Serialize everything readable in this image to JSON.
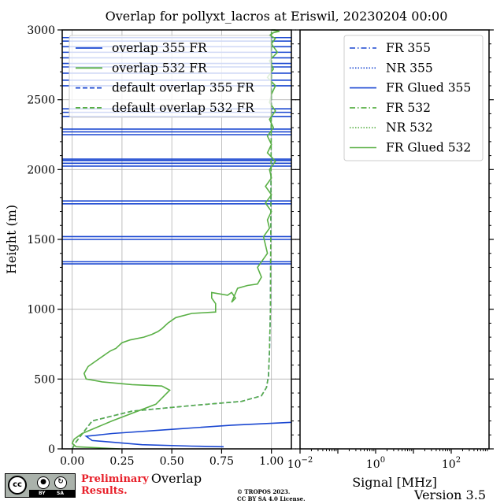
{
  "title": "Overlap for pollyxt_lacros at Eriswil, 20230204 00:00",
  "chart_data": [
    {
      "panel": "left",
      "type": "line",
      "xlabel": "Overlap",
      "ylabel": "Height (m)",
      "xlim": [
        -0.05,
        1.1
      ],
      "ylim": [
        0,
        3000
      ],
      "x_ticks": [
        0.0,
        0.25,
        0.5,
        0.75,
        1.0
      ],
      "x_tick_labels": [
        "0.00",
        "0.25",
        "0.50",
        "0.75",
        "1.00"
      ],
      "y_ticks": [
        0,
        500,
        1000,
        1500,
        2000,
        2500,
        3000
      ],
      "y_tick_labels": [
        "0",
        "500",
        "1000",
        "1500",
        "2000",
        "2500",
        "3000"
      ],
      "grid": true,
      "legend_position": "upper-left",
      "series": [
        {
          "name": "overlap 355 FR",
          "color": "#1a47d1",
          "style": "solid",
          "x": [
            0.76,
            0.6,
            0.35,
            0.1,
            0.07,
            0.2,
            0.5,
            0.8,
            1.1
          ],
          "y": [
            15,
            20,
            30,
            60,
            90,
            110,
            140,
            170,
            190
          ],
          "band_heights": [
            1325,
            1340,
            1500,
            1520,
            1755,
            1775,
            2025,
            2045,
            2065,
            2075,
            2250,
            2270,
            2290,
            2380,
            2410,
            2435,
            2600,
            2640,
            2690,
            2735,
            2760,
            2800,
            2840,
            2880,
            2920,
            2945
          ]
        },
        {
          "name": "overlap 532 FR",
          "color": "#5ab046",
          "style": "solid",
          "x": [
            0.24,
            0.02,
            0.0,
            0.01,
            0.05,
            0.2,
            0.42,
            0.49,
            0.45,
            0.3,
            0.15,
            0.07,
            0.06,
            0.08,
            0.13,
            0.19,
            0.22,
            0.25,
            0.29,
            0.36,
            0.4,
            0.43,
            0.45,
            0.48,
            0.52,
            0.6,
            0.72,
            0.72,
            0.7,
            0.7,
            0.78,
            0.8,
            0.82,
            0.8,
            0.83,
            0.88,
            0.93,
            0.95,
            0.93,
            0.95,
            0.98,
            0.97,
            0.96,
            0.99,
            0.98,
            1.0,
            0.97,
            1.0,
            0.97,
            1.0,
            0.99,
            1.02,
            0.98,
            1.0,
            0.98,
            1.01,
            0.99,
            1.02,
            0.99,
            1.0,
            1.02,
            0.98,
            1.01,
            0.99,
            1.03,
            1.0,
            1.02,
            0.99,
            1.01,
            1.04,
            1.0,
            1.02
          ],
          "y": [
            0,
            15,
            40,
            70,
            110,
            200,
            320,
            420,
            450,
            460,
            480,
            500,
            540,
            590,
            640,
            700,
            720,
            760,
            780,
            800,
            820,
            840,
            860,
            900,
            940,
            970,
            980,
            1040,
            1080,
            1120,
            1100,
            1120,
            1080,
            1050,
            1150,
            1170,
            1180,
            1230,
            1300,
            1340,
            1400,
            1460,
            1520,
            1580,
            1640,
            1700,
            1760,
            1820,
            1880,
            1940,
            2000,
            2060,
            2120,
            2180,
            2240,
            2300,
            2360,
            2420,
            2480,
            2540,
            2600,
            2660,
            2720,
            2780,
            2840,
            2900,
            2940,
            2960,
            2980,
            2990,
            3000,
            3000
          ]
        },
        {
          "name": "default overlap 355 FR",
          "color": "#1a47d1",
          "style": "dashed",
          "x": [
            0.0,
            0.02,
            0.1,
            0.3,
            0.6,
            0.85,
            0.95,
            0.975,
            0.985,
            0.99,
            0.995,
            0.998,
            1.0
          ],
          "y": [
            0,
            50,
            200,
            270,
            310,
            340,
            380,
            440,
            520,
            700,
            1000,
            2000,
            3000
          ]
        },
        {
          "name": "default overlap 532 FR",
          "color": "#5ab046",
          "style": "dashed",
          "x": [
            0.0,
            0.02,
            0.1,
            0.3,
            0.6,
            0.85,
            0.95,
            0.975,
            0.985,
            0.99,
            0.995,
            0.998,
            1.0
          ],
          "y": [
            0,
            50,
            200,
            270,
            310,
            340,
            380,
            440,
            520,
            700,
            1000,
            2000,
            3000
          ]
        }
      ]
    },
    {
      "panel": "right",
      "type": "line",
      "xlabel": "Signal [MHz]",
      "x_scale": "log",
      "xlim_exponent": [
        -2,
        3
      ],
      "x_tick_exponents": [
        -2,
        0,
        2
      ],
      "ylim": [
        0,
        3000
      ],
      "legend_position": "upper-right",
      "series": [
        {
          "name": "FR 355",
          "color": "#1a47d1",
          "style": "dashdot"
        },
        {
          "name": "NR 355",
          "color": "#1a47d1",
          "style": "dotted"
        },
        {
          "name": "FR Glued 355",
          "color": "#1a47d1",
          "style": "solid"
        },
        {
          "name": "FR 532",
          "color": "#5ab046",
          "style": "dashdot"
        },
        {
          "name": "NR 532",
          "color": "#5ab046",
          "style": "dotted"
        },
        {
          "name": "FR Glued 532",
          "color": "#5ab046",
          "style": "solid"
        }
      ]
    }
  ],
  "footer": {
    "license_badge": {
      "cc": "cc",
      "by": "BY",
      "sa": "SA"
    },
    "preliminary_line1": "Preliminary",
    "preliminary_line2": "Results.",
    "copyright_line1": "© TROPOS 2023.",
    "copyright_line2": "CC BY SA 4.0 License.",
    "version": "Version 3.5"
  }
}
